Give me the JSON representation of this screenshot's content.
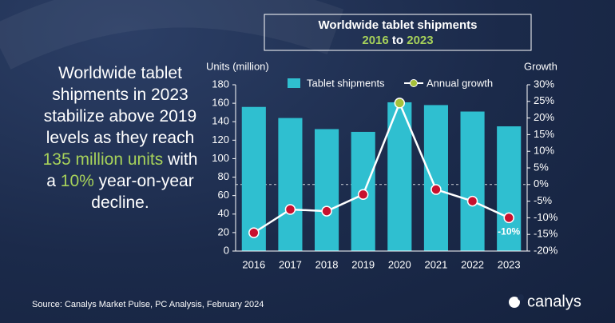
{
  "chart_data": {
    "type": "bar_line",
    "title": "Worldwide tablet shipments",
    "subtitle": [
      "2016",
      "to",
      "2023"
    ],
    "annotation": [
      "Worldwide tablet shipments in 2023 stabilize above 2019 levels as they reach ",
      "135 million units",
      " with a ",
      "10%",
      " year-on-year decline."
    ],
    "y_label": "Units (million)",
    "y2_label": "Growth",
    "categories": [
      "2016",
      "2017",
      "2018",
      "2019",
      "2020",
      "2021",
      "2022",
      "2023"
    ],
    "series": [
      {
        "name": "Tablet shipments",
        "type": "bar",
        "color": "#2fbfd0",
        "values": [
          156,
          144,
          132,
          129,
          161,
          158,
          151,
          135
        ]
      },
      {
        "name": "Annual growth",
        "type": "line",
        "axis": "y2",
        "color": "#ffffff",
        "marker_colors": [
          "#c8102e",
          "#c8102e",
          "#c8102e",
          "#c8102e",
          "#a6c13a",
          "#c8102e",
          "#c8102e",
          "#c8102e"
        ],
        "values": [
          -14.5,
          -7.5,
          -8,
          -3,
          24.5,
          -1.5,
          -5,
          -10
        ],
        "value_labels": [
          null,
          null,
          null,
          null,
          null,
          null,
          null,
          "-10%"
        ]
      }
    ],
    "ylim": [
      0,
      180
    ],
    "yticks": [
      0,
      20,
      40,
      60,
      80,
      100,
      120,
      140,
      160,
      180
    ],
    "y2lim": [
      -20,
      30
    ],
    "y2ticks": [
      {
        "value": -20,
        "label": "-20%"
      },
      {
        "value": -15,
        "label": "-15%"
      },
      {
        "value": -10,
        "label": "-10%"
      },
      {
        "value": -5,
        "label": "-5%"
      },
      {
        "value": 0,
        "label": "0%"
      },
      {
        "value": 5,
        "label": "5%"
      },
      {
        "value": 10,
        "label": "10%"
      },
      {
        "value": 15,
        "label": "15%"
      },
      {
        "value": 20,
        "label": "20%"
      },
      {
        "value": 25,
        "label": "25%"
      },
      {
        "value": 30,
        "label": "30%"
      }
    ],
    "source": "Source:  Canalys Market Pulse, PC Analysis, February 2024",
    "brand": "canalys"
  }
}
